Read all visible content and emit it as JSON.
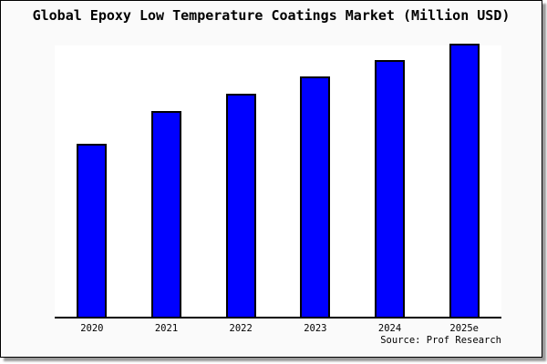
{
  "title": "Global Epoxy Low Temperature Coatings Market (Million USD)",
  "source_text": "Source: Prof Research",
  "colors": {
    "background": "#FAFAFA",
    "plot_background": "#FFFFFF",
    "bar_fill": "#0000FF",
    "bar_border": "#000000",
    "axis": "#000000",
    "frame_border": "#000000",
    "shadow": "#999999"
  },
  "chart_data": {
    "type": "bar",
    "title": "Global Epoxy Low Temperature Coatings Market (Million USD)",
    "categories": [
      "2020",
      "2021",
      "2022",
      "2023",
      "2024",
      "2025e"
    ],
    "values": [
      63,
      75.3,
      81.7,
      88,
      94,
      100
    ],
    "values_note": "relative scale estimated from bar heights; no y-axis ticks shown",
    "xlabel": "",
    "ylabel": "",
    "ylim": [
      0,
      100
    ],
    "grid": false,
    "legend": false,
    "y_axis_visible": false,
    "bar_color": "#0000FF",
    "bar_border_color": "#000000"
  }
}
